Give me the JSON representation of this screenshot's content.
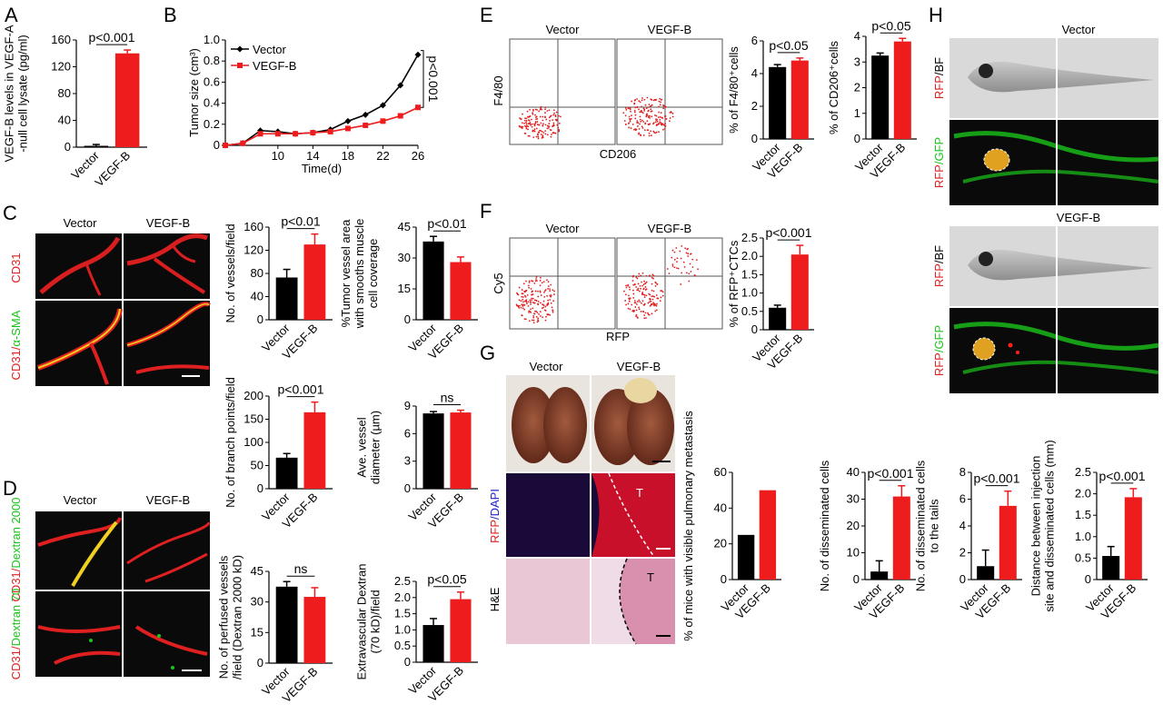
{
  "panel_labels": [
    "A",
    "B",
    "C",
    "D",
    "E",
    "F",
    "G",
    "H"
  ],
  "colors": {
    "vector": "#000000",
    "vegfb": "#ee1c1c",
    "micro_bg": "#0a0a0a",
    "vessel_red": "#e02020",
    "vessel_yellow": "#f0d020",
    "gfp_green": "#19c419",
    "lung_brown": "#7a3b26"
  },
  "micrographs": {
    "C": {
      "col_vector": "Vector",
      "col_vegfb": "VEGF-B",
      "row1": "CD31",
      "row2_a": "CD31/",
      "row2_b": "α-SMA"
    },
    "D": {
      "col_vector": "Vector",
      "col_vegfb": "VEGF-B",
      "row1_a": "CD31/",
      "row1_b": "Dextran 2000",
      "row2_a": "CD31/",
      "row2_b": "Dextran 70"
    },
    "E": {
      "col_vector": "Vector",
      "col_vegfb": "VEGF-B",
      "ylabel": "F4/80",
      "xlabel": "CD206"
    },
    "F": {
      "col_vector": "Vector",
      "col_vegfb": "VEGF-B",
      "ylabel": "Cy5",
      "xlabel": "RFP"
    },
    "G": {
      "col_vector": "Vector",
      "col_vegfb": "VEGF-B",
      "row2_a": "RFP",
      "row2_b": "/DAPI",
      "row3": "H&E",
      "tumor_mark": "T"
    },
    "H": {
      "title_vector": "Vector",
      "title_vegfb": "VEGF-B",
      "rfp": "RFP",
      "bf": "/BF",
      "gfp": "/GFP"
    }
  },
  "chart_data": [
    {
      "id": "A",
      "type": "bar",
      "categories": [
        "Vector",
        "VEGF-B"
      ],
      "values": [
        2,
        140
      ],
      "errors": [
        2,
        5
      ],
      "ylabel": "VEGF-B levels in VEGF-A -null cell lysate (pg/ml)",
      "ylabel_lines": [
        "VEGF-B levels in VEGF-A",
        "-null cell lysate (pg/ml)"
      ],
      "ylim": [
        0,
        160
      ],
      "yticks": [
        "0",
        "40",
        "80",
        "120",
        "160"
      ],
      "sig": "p<0.001"
    },
    {
      "id": "B",
      "type": "line",
      "xlabel": "Time(d)",
      "ylabel": "Tumor size (cm³)",
      "ylabel_lines": [
        "Tumor size (cm³)"
      ],
      "xlim": [
        4,
        26
      ],
      "ylim": [
        0,
        1.0
      ],
      "xticks": [
        "10",
        "14",
        "18",
        "22",
        "26"
      ],
      "yticks": [
        "0",
        "0.2",
        "0.4",
        "0.6",
        "0.8",
        "1.0"
      ],
      "x": [
        4,
        6,
        8,
        10,
        12,
        14,
        16,
        18,
        20,
        22,
        24,
        26
      ],
      "series": [
        {
          "name": "Vector",
          "values": [
            0,
            0.02,
            0.14,
            0.13,
            0.11,
            0.12,
            0.15,
            0.23,
            0.29,
            0.38,
            0.57,
            0.86
          ]
        },
        {
          "name": "VEGF-B",
          "values": [
            0,
            0.02,
            0.11,
            0.11,
            0.11,
            0.12,
            0.13,
            0.16,
            0.19,
            0.23,
            0.28,
            0.36
          ]
        }
      ],
      "sig": "p<0.001",
      "legend": "top-left"
    },
    {
      "id": "C1",
      "type": "bar",
      "categories": [
        "Vector",
        "VEGF-B"
      ],
      "values": [
        73,
        130
      ],
      "errors": [
        14,
        18
      ],
      "ylabel": "No. of vessels/field",
      "ylabel_lines": [
        "No. of vessels/field"
      ],
      "ylim": [
        0,
        160
      ],
      "yticks": [
        "0",
        "40",
        "80",
        "120",
        "160"
      ],
      "sig": "p<0.01"
    },
    {
      "id": "C2",
      "type": "bar",
      "categories": [
        "Vector",
        "VEGF-B"
      ],
      "values": [
        38,
        28
      ],
      "errors": [
        2.5,
        2.5
      ],
      "ylabel": "%Tumor vessel area with smooths muscle cell coverage",
      "ylabel_lines": [
        "%Tumor vessel area",
        "with smooths muscle",
        "cell coverage"
      ],
      "ylim": [
        0,
        45
      ],
      "yticks": [
        "0",
        "15",
        "30",
        "45"
      ],
      "sig": "p<0.01"
    },
    {
      "id": "C3",
      "type": "bar",
      "categories": [
        "Vector",
        "VEGF-B"
      ],
      "values": [
        67,
        165
      ],
      "errors": [
        9,
        22
      ],
      "ylabel": "No. of branch points/field",
      "ylabel_lines": [
        "No. of branch points/field"
      ],
      "ylim": [
        0,
        200
      ],
      "yticks": [
        "0",
        "50",
        "100",
        "150",
        "200"
      ],
      "sig": "p<0.001"
    },
    {
      "id": "C4",
      "type": "bar",
      "categories": [
        "Vector",
        "VEGF-B"
      ],
      "values": [
        8.2,
        8.3
      ],
      "errors": [
        0.2,
        0.25
      ],
      "ylabel": "Ave. vessel diameter (µm)",
      "ylabel_lines": [
        "Ave. vessel",
        "diameter (µm)"
      ],
      "ylim": [
        0,
        9
      ],
      "yticks": [
        "0",
        "3",
        "6",
        "9"
      ],
      "sig": "ns"
    },
    {
      "id": "D1",
      "type": "bar",
      "categories": [
        "Vector",
        "VEGF-B"
      ],
      "values": [
        37.5,
        32.5
      ],
      "errors": [
        2.5,
        4.5
      ],
      "ylabel": "No. of perfused vessels /field (Dextran 2000 kD)",
      "ylabel_lines": [
        "No. of perfused vessels",
        "/field (Dextran 2000 kD)"
      ],
      "ylim": [
        0,
        45
      ],
      "yticks": [
        "0",
        "15",
        "30",
        "45"
      ],
      "sig": "ns"
    },
    {
      "id": "D2",
      "type": "bar",
      "categories": [
        "Vector",
        "VEGF-B"
      ],
      "values": [
        1.15,
        1.95
      ],
      "errors": [
        0.2,
        0.22
      ],
      "ylabel": "Extravascular Dextran (70 kD)/field",
      "ylabel_lines": [
        "Extravascular Dextran",
        "(70 kD)/field"
      ],
      "ylim": [
        0,
        2.5
      ],
      "yticks": [
        "0",
        "0.5",
        "1.0",
        "1.5",
        "2.0",
        "2.5"
      ],
      "sig": "p<0.05"
    },
    {
      "id": "E1",
      "type": "bar",
      "categories": [
        "Vector",
        "VEGF-B"
      ],
      "values": [
        4.4,
        4.8
      ],
      "errors": [
        0.15,
        0.15
      ],
      "ylabel": "% of F4/80⁺cells",
      "ylabel_lines": [
        "% of F4/80⁺cells"
      ],
      "ylim": [
        0,
        6
      ],
      "yticks": [
        "0",
        "2",
        "4",
        "6"
      ],
      "sig": "p<0.05"
    },
    {
      "id": "E2",
      "type": "bar",
      "categories": [
        "Vector",
        "VEGF-B"
      ],
      "values": [
        3.25,
        3.8
      ],
      "errors": [
        0.1,
        0.12
      ],
      "ylabel": "% of CD206⁺cells",
      "ylabel_lines": [
        "% of CD206⁺cells"
      ],
      "ylim": [
        0,
        4
      ],
      "yticks": [
        "0",
        "1",
        "2",
        "3",
        "4"
      ],
      "sig": "p<0.05"
    },
    {
      "id": "F1",
      "type": "bar",
      "categories": [
        "Vector",
        "VEGF-B"
      ],
      "values": [
        0.6,
        2.05
      ],
      "errors": [
        0.07,
        0.25
      ],
      "ylabel": "% of RFP⁺CTCs",
      "ylabel_lines": [
        "% of RFP⁺CTCs"
      ],
      "ylim": [
        0,
        2.5
      ],
      "yticks": [
        "0",
        "0.5",
        "1.0",
        "1.5",
        "2.0",
        "2.5"
      ],
      "sig": "p<0.001"
    },
    {
      "id": "G1",
      "type": "bar",
      "categories": [
        "Vector",
        "VEGF-B"
      ],
      "values": [
        25,
        50
      ],
      "errors": [
        0,
        0
      ],
      "ylabel": "% of mice with visible pulmonary metastasis",
      "ylabel_lines": [
        "% of mice with visible pulmonary metastasis"
      ],
      "ylim": [
        0,
        60
      ],
      "yticks": [
        "0",
        "20",
        "40",
        "60"
      ],
      "sig": ""
    },
    {
      "id": "H1",
      "type": "bar",
      "categories": [
        "Vector",
        "VEGF-B"
      ],
      "values": [
        3,
        31
      ],
      "errors": [
        4,
        4
      ],
      "ylabel": "No. of disseminated cells",
      "ylabel_lines": [
        "No. of disseminated cells"
      ],
      "ylim": [
        0,
        40
      ],
      "yticks": [
        "0",
        "10",
        "20",
        "30",
        "40"
      ],
      "sig": "p<0.001"
    },
    {
      "id": "H2",
      "type": "bar",
      "categories": [
        "Vector",
        "VEGF-B"
      ],
      "values": [
        1,
        5.5
      ],
      "errors": [
        1.2,
        1.1
      ],
      "ylabel": "No. of disseminated cells to the tails",
      "ylabel_lines": [
        "No. of disseminated cells",
        "to the tails"
      ],
      "ylim": [
        0,
        8
      ],
      "yticks": [
        "0",
        "2",
        "4",
        "6",
        "8"
      ],
      "sig": "p<0.001"
    },
    {
      "id": "H3",
      "type": "bar",
      "categories": [
        "Vector",
        "VEGF-B"
      ],
      "values": [
        0.55,
        1.92
      ],
      "errors": [
        0.22,
        0.2
      ],
      "ylabel": "Distance between injection site and disseminated cells (mm)",
      "ylabel_lines": [
        "Distance between injection",
        "site and disseminated cells (mm)"
      ],
      "ylim": [
        0,
        2.5
      ],
      "yticks": [
        "0",
        "0.5",
        "1.0",
        "1.5",
        "2.0",
        "2.5"
      ],
      "sig": "p<0.001"
    }
  ]
}
